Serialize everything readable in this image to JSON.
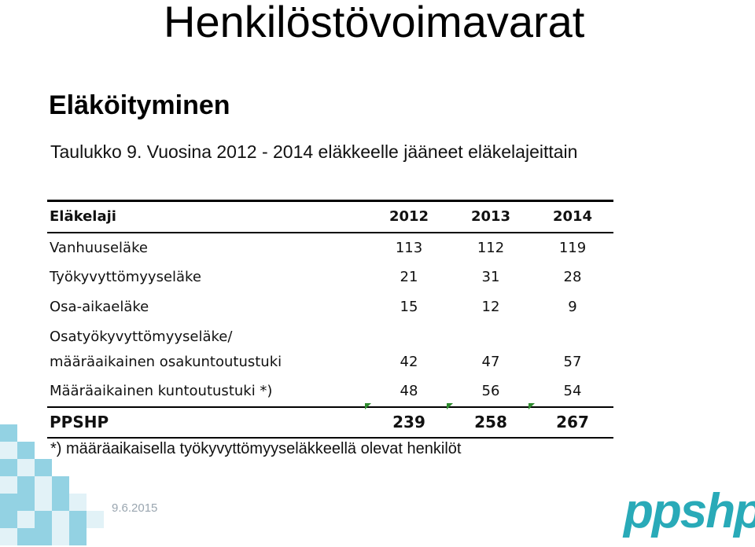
{
  "title": "Henkilöstövoimavarat",
  "subtitle": "Eläköityminen",
  "caption": "Taulukko 9. Vuosina 2012 - 2014 eläkkeelle jääneet eläkelajeittain",
  "table": {
    "headers": [
      "Eläkelaji",
      "2012",
      "2013",
      "2014"
    ],
    "rows": [
      {
        "label": "Vanhuuseläke",
        "values": [
          "113",
          "112",
          "119"
        ]
      },
      {
        "label": "Työkyvyttömyyseläke",
        "values": [
          "21",
          "31",
          "28"
        ]
      },
      {
        "label": "Osa-aikaeläke",
        "values": [
          "15",
          "12",
          "9"
        ]
      },
      {
        "label_line1": "Osatyökyvyttömyyseläke/",
        "label_line2": "määräaikainen osakuntoutustuki",
        "values": [
          "42",
          "47",
          "57"
        ]
      },
      {
        "label": "Määräaikainen kuntoutustuki *)",
        "values": [
          "48",
          "56",
          "54"
        ]
      }
    ],
    "total": {
      "label": "PPSHP",
      "values": [
        "239",
        "258",
        "267"
      ]
    }
  },
  "footnote": "*) määräaikaisella työkyvyttömyyseläkkeellä olevat henkilöt",
  "date": "9.6.2015",
  "logo": "ppshp",
  "colors": {
    "logo": "#29aab8",
    "flag": "#2e8b2e",
    "mosaic_dark": "#6fc3d9",
    "mosaic_light": "#cfeaf2"
  }
}
